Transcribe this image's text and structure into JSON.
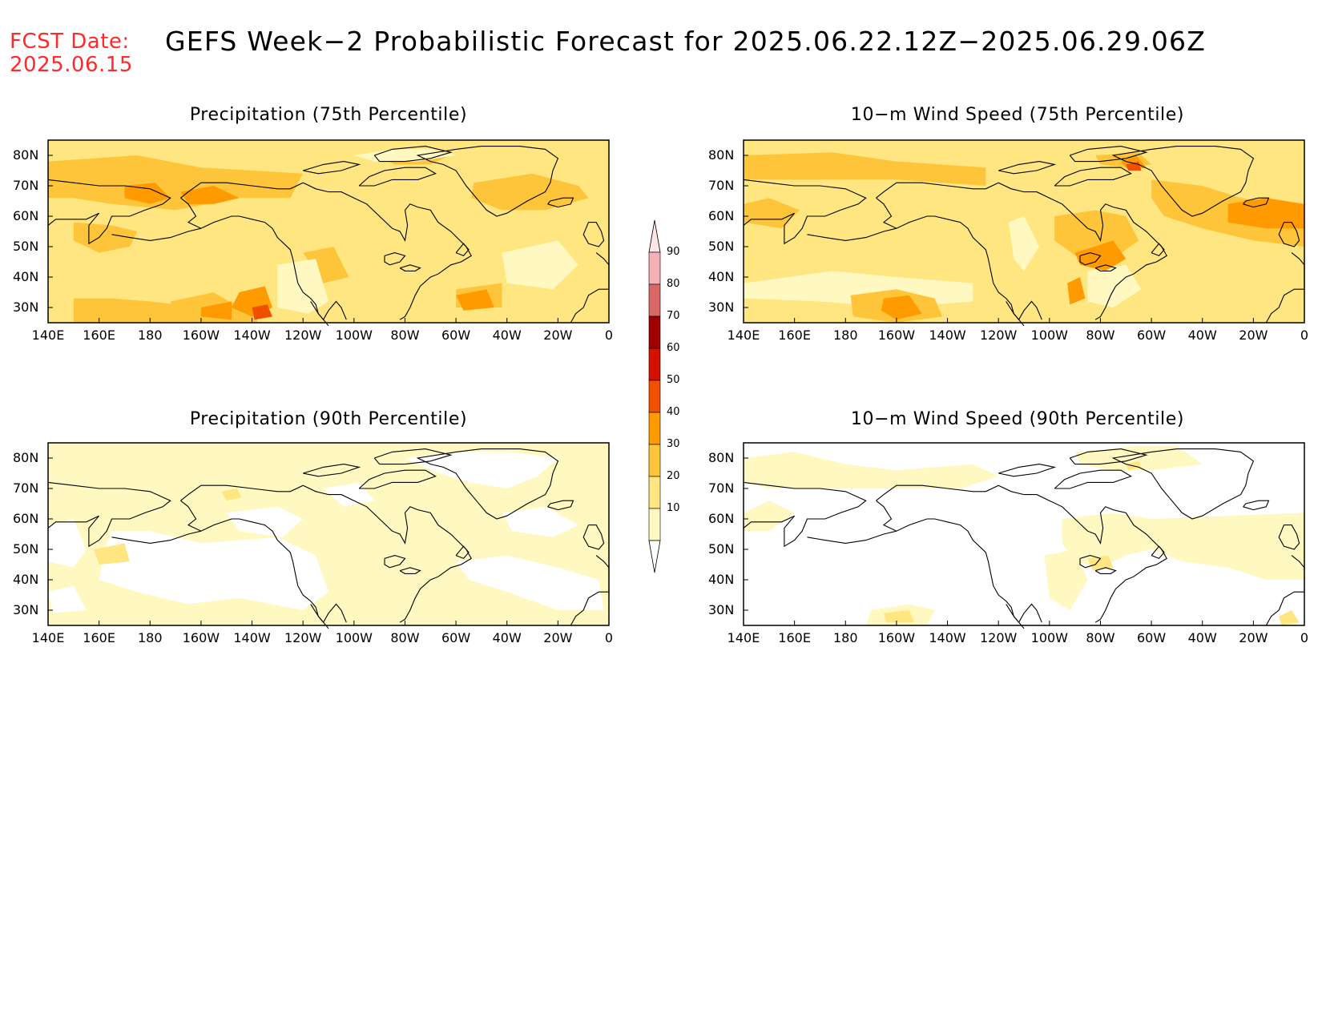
{
  "header": {
    "fcst_line1": "FCST Date:",
    "fcst_line2": "2025.06.15",
    "title": "GEFS Week−2 Probabilistic Forecast for 2025.06.22.12Z−2025.06.29.06Z"
  },
  "panels": [
    {
      "id": "precip75",
      "title": "Precipitation (75th Percentile)",
      "base_level": 20
    },
    {
      "id": "wind75",
      "title": "10−m Wind Speed (75th Percentile)",
      "base_level": 20
    },
    {
      "id": "precip90",
      "title": "Precipitation (90th Percentile)",
      "base_level": 10
    },
    {
      "id": "wind90",
      "title": "10−m Wind Speed (90th Percentile)",
      "base_level": 0
    }
  ],
  "lat_labels": [
    "80N",
    "70N",
    "60N",
    "50N",
    "40N",
    "30N"
  ],
  "lon_labels": [
    "140E",
    "160E",
    "180",
    "160W",
    "140W",
    "120W",
    "100W",
    "80W",
    "60W",
    "40W",
    "20W",
    "0"
  ],
  "colorbar": {
    "labels": [
      "10",
      "20",
      "30",
      "40",
      "50",
      "60",
      "70",
      "80",
      "90"
    ],
    "colors": {
      "10": "#fff8c0",
      "20": "#ffe680",
      "30": "#ffc53a",
      "40": "#ff9a00",
      "50": "#f05000",
      "60": "#d41000",
      "70": "#a00000",
      "80": "#d86868",
      "90": "#f4b0b4",
      "top": "#ffe4e6"
    }
  }
}
